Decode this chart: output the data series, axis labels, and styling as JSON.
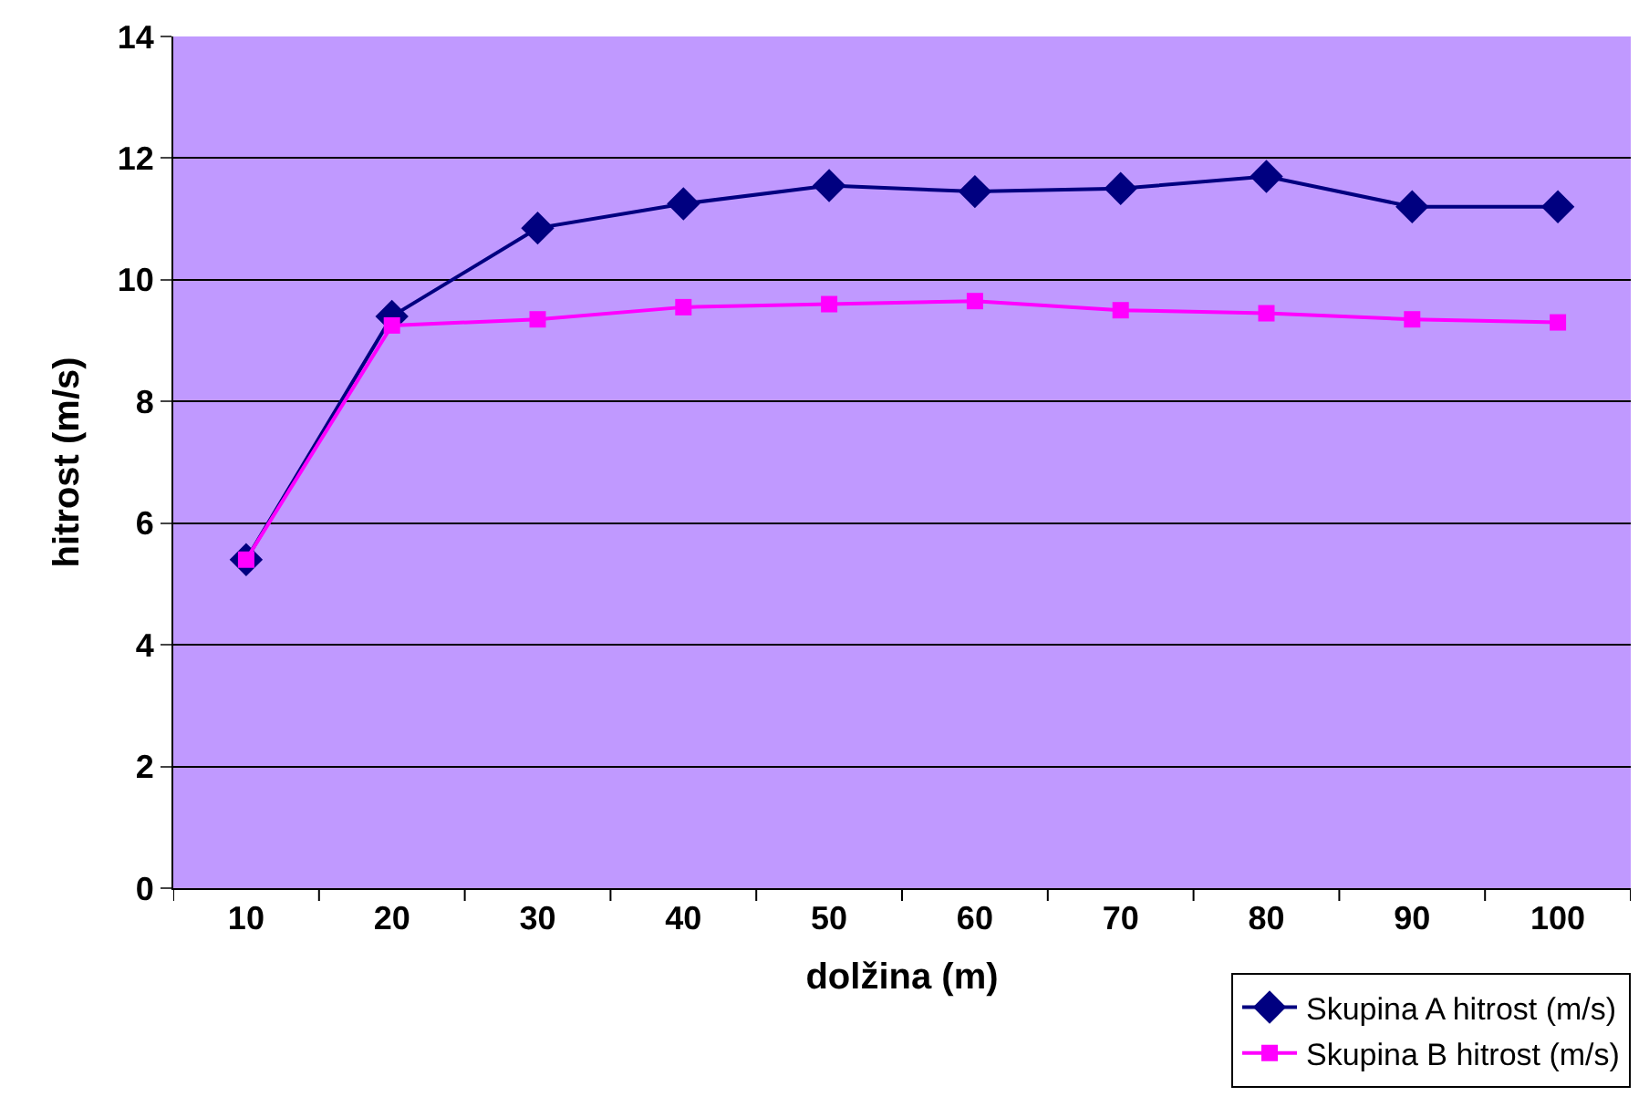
{
  "chart_data": {
    "type": "line",
    "xlabel": "dolžina (m)",
    "ylabel": "hitrost (m/s)",
    "categories": [
      "10",
      "20",
      "30",
      "40",
      "50",
      "60",
      "70",
      "80",
      "90",
      "100"
    ],
    "ylim": [
      0,
      14
    ],
    "yticks": [
      0,
      2,
      4,
      6,
      8,
      10,
      12,
      14
    ],
    "grid": "y",
    "legend": "bottom right",
    "line_style": "solid",
    "series": [
      {
        "name": "Skupina A hitrost (m/s)",
        "color": "#000080",
        "marker": "diamond",
        "values": [
          5.4,
          9.4,
          10.85,
          11.25,
          11.55,
          11.45,
          11.5,
          11.7,
          11.2,
          11.2
        ]
      },
      {
        "name": "Skupina B hitrost (m/s)",
        "color": "#ff00ff",
        "marker": "square",
        "values": [
          5.4,
          9.25,
          9.35,
          9.55,
          9.6,
          9.65,
          9.5,
          9.45,
          9.35,
          9.3
        ]
      }
    ]
  }
}
